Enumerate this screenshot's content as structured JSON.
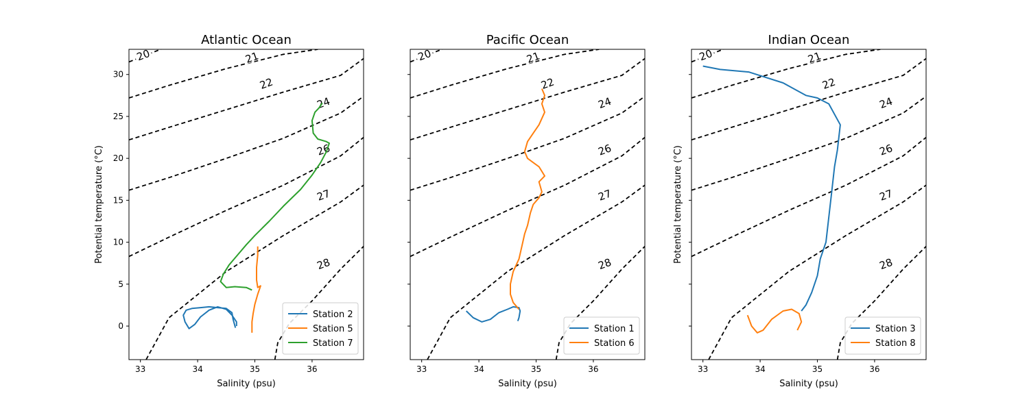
{
  "chart_data": {
    "type": "line",
    "xlabel": "Salinity (psu)",
    "ylabel": "Potential temperature (°C)",
    "xlim": [
      32.8,
      36.9
    ],
    "ylim": [
      -4,
      33
    ],
    "x_ticks": [
      33,
      34,
      35,
      36
    ],
    "y_ticks": [
      0,
      5,
      10,
      15,
      20,
      25,
      30
    ],
    "grid": false,
    "legend_position": "lower-right",
    "sigma_contours": [
      {
        "label": "20",
        "points": [
          [
            32.8,
            31.5
          ],
          [
            33.5,
            33.4
          ]
        ]
      },
      {
        "label": "21",
        "points": [
          [
            32.8,
            27.2
          ],
          [
            33.5,
            28.7
          ],
          [
            34.5,
            30.7
          ],
          [
            35.5,
            32.4
          ],
          [
            36.1,
            33.0
          ]
        ]
      },
      {
        "label": "22",
        "points": [
          [
            32.8,
            22.2
          ],
          [
            33.5,
            23.7
          ],
          [
            34.5,
            25.8
          ],
          [
            35.5,
            27.9
          ],
          [
            36.5,
            29.9
          ],
          [
            36.9,
            31.9
          ]
        ]
      },
      {
        "label": "24",
        "points": [
          [
            32.8,
            16.2
          ],
          [
            33.5,
            17.7
          ],
          [
            34.5,
            20.0
          ],
          [
            35.5,
            22.4
          ],
          [
            36.5,
            25.4
          ],
          [
            36.9,
            27.4
          ]
        ]
      },
      {
        "label": "26",
        "points": [
          [
            32.8,
            8.3
          ],
          [
            33.5,
            10.6
          ],
          [
            34.5,
            13.8
          ],
          [
            35.5,
            16.8
          ],
          [
            36.5,
            20.3
          ],
          [
            36.9,
            22.5
          ]
        ]
      },
      {
        "label": "27",
        "points": [
          [
            33.1,
            -4.0
          ],
          [
            33.5,
            1.0
          ],
          [
            34.5,
            6.5
          ],
          [
            35.5,
            10.8
          ],
          [
            36.5,
            14.8
          ],
          [
            36.9,
            16.8
          ]
        ]
      },
      {
        "label": "28",
        "points": [
          [
            35.35,
            -4.0
          ],
          [
            35.4,
            -2.0
          ],
          [
            35.6,
            0.3
          ],
          [
            36.0,
            3.0
          ],
          [
            36.5,
            6.8
          ],
          [
            36.9,
            9.5
          ]
        ]
      }
    ],
    "panels": [
      {
        "title": "Atlantic Ocean",
        "ylabel_shown": true,
        "series": [
          {
            "name": "Station 2",
            "color": "#1f77b4",
            "x": [
              34.68,
              34.68,
              34.6,
              34.5,
              34.35,
              34.2,
              34.05,
              33.95,
              33.85,
              33.78,
              33.75,
              33.8,
              33.9,
              34.05,
              34.2,
              34.35,
              34.5,
              34.6,
              34.62,
              34.66
            ],
            "y": [
              0.0,
              0.5,
              1.3,
              2.0,
              2.3,
              1.9,
              1.1,
              0.2,
              -0.3,
              0.5,
              1.3,
              1.9,
              2.1,
              2.2,
              2.3,
              2.2,
              2.1,
              1.6,
              0.8,
              -0.2
            ]
          },
          {
            "name": "Station 5",
            "color": "#ff7f0e",
            "x": [
              34.95,
              34.95,
              34.97,
              35.0,
              35.05,
              35.1,
              35.05,
              35.03,
              35.03,
              35.05,
              35.05
            ],
            "y": [
              -0.8,
              0.5,
              1.5,
              2.6,
              3.8,
              4.8,
              4.6,
              5.5,
              7.0,
              8.5,
              9.5
            ]
          },
          {
            "name": "Station 7",
            "color": "#2ca02c",
            "x": [
              34.95,
              34.85,
              34.65,
              34.5,
              34.4,
              34.45,
              34.55,
              34.7,
              34.85,
              35.0,
              35.25,
              35.5,
              35.8,
              36.0,
              36.15,
              36.25,
              36.3,
              36.25,
              36.1,
              36.02,
              36.0,
              36.05,
              36.12,
              36.18
            ],
            "y": [
              4.3,
              4.6,
              4.7,
              4.6,
              5.3,
              6.2,
              7.3,
              8.5,
              9.7,
              10.8,
              12.5,
              14.3,
              16.3,
              18.0,
              19.5,
              20.8,
              21.8,
              22.0,
              22.3,
              23.0,
              24.5,
              25.5,
              26.0,
              26.6
            ]
          }
        ]
      },
      {
        "title": "Pacific Ocean",
        "ylabel_shown": false,
        "series": [
          {
            "name": "Station 1",
            "color": "#1f77b4",
            "x": [
              33.78,
              33.9,
              34.05,
              34.2,
              34.35,
              34.5,
              34.6,
              34.7,
              34.72,
              34.7,
              34.68
            ],
            "y": [
              1.8,
              1.0,
              0.5,
              0.8,
              1.6,
              2.0,
              2.3,
              2.2,
              1.8,
              1.0,
              0.6
            ]
          },
          {
            "name": "Station 6",
            "color": "#ff7f0e",
            "x": [
              34.7,
              34.6,
              34.55,
              34.55,
              34.6,
              34.7,
              34.75,
              34.8,
              34.85,
              34.9,
              34.95,
              35.05,
              35.1,
              35.05,
              35.15,
              35.05,
              34.95,
              34.85,
              34.8,
              34.85,
              34.95,
              35.05,
              35.15,
              35.1,
              35.15,
              35.1
            ],
            "y": [
              2.0,
              2.8,
              3.8,
              5.0,
              6.5,
              8.0,
              9.5,
              11.0,
              12.0,
              13.5,
              14.5,
              15.3,
              16.0,
              17.2,
              17.9,
              19.0,
              19.5,
              20.0,
              20.8,
              22.0,
              23.0,
              24.0,
              25.5,
              26.5,
              27.5,
              28.3
            ]
          }
        ]
      },
      {
        "title": "Indian Ocean",
        "ylabel_shown": true,
        "series": [
          {
            "name": "Station 3",
            "color": "#1f77b4",
            "x": [
              33.0,
              33.3,
              33.8,
              34.4,
              34.8,
              35.0,
              35.2,
              35.4,
              35.35,
              35.3,
              35.25,
              35.2,
              35.15,
              35.05,
              35.0,
              34.9,
              34.8,
              34.72
            ],
            "y": [
              31.0,
              30.6,
              30.3,
              29.0,
              27.5,
              27.2,
              26.5,
              24.0,
              21.0,
              19.0,
              16.0,
              13.0,
              10.0,
              8.0,
              6.0,
              4.0,
              2.5,
              1.8
            ]
          },
          {
            "name": "Station 8",
            "color": "#ff7f0e",
            "x": [
              34.65,
              34.72,
              34.68,
              34.55,
              34.4,
              34.2,
              34.05,
              33.95,
              33.85,
              33.78
            ],
            "y": [
              -0.5,
              0.5,
              1.5,
              2.0,
              1.8,
              0.8,
              -0.5,
              -0.8,
              0.0,
              1.3
            ]
          }
        ]
      }
    ]
  }
}
